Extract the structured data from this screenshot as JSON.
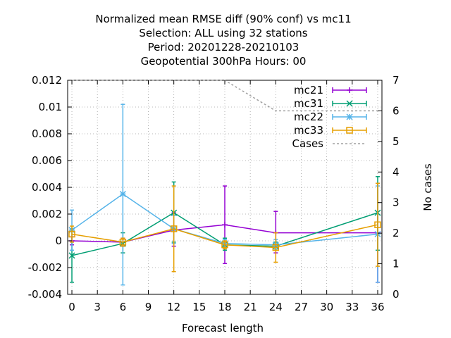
{
  "chart_data": {
    "type": "line",
    "title_lines": [
      "Normalized mean RMSE diff (90% conf) vs mc11",
      "Selection: ALL using    32 stations",
      "Period: 20201228-20210103",
      "Geopotential 300hPa  Hours:  00"
    ],
    "xlabel": "Forecast length",
    "ylabel": "",
    "y2label": "No cases",
    "xlim": [
      -0.5,
      36.5
    ],
    "ylim": [
      -0.004,
      0.012
    ],
    "y2lim": [
      0,
      7
    ],
    "x_ticks": [
      0,
      3,
      6,
      9,
      12,
      15,
      18,
      21,
      24,
      27,
      30,
      33,
      36
    ],
    "y_ticks": [
      -0.004,
      -0.002,
      0,
      0.002,
      0.004,
      0.006,
      0.008,
      0.01,
      0.012
    ],
    "y_tick_labels": [
      "-0.004",
      "-0.002",
      "0",
      "0.002",
      "0.004",
      "0.006",
      "0.008",
      "0.01",
      "0.012"
    ],
    "y2_ticks": [
      0,
      1,
      2,
      3,
      4,
      5,
      6,
      7
    ],
    "y2_tick_labels": [
      "0",
      "1",
      "2",
      "3",
      "4",
      "5",
      "6",
      "7"
    ],
    "grid": true,
    "legend_position": "top-right",
    "series": [
      {
        "name": "mc21",
        "color": "#9400d3",
        "marker": "plus",
        "x": [
          0,
          6,
          12,
          18,
          24,
          36
        ],
        "y": [
          0.0,
          -0.0001,
          0.0008,
          0.0012,
          0.0006,
          0.0006
        ],
        "err_low": [
          -0.0003,
          -0.0004,
          -0.0004,
          -0.0017,
          -0.0009,
          -0.0031
        ],
        "err_high": [
          0.0003,
          0.0002,
          0.0021,
          0.0041,
          0.0022,
          0.0043
        ]
      },
      {
        "name": "mc31",
        "color": "#009e73",
        "marker": "cross",
        "x": [
          0,
          6,
          12,
          18,
          24,
          36
        ],
        "y": [
          -0.0011,
          -0.0002,
          0.0021,
          -0.0003,
          -0.0004,
          0.0021
        ],
        "err_low": [
          -0.0031,
          -0.0009,
          -0.0001,
          -0.0007,
          -0.0007,
          -0.0007
        ],
        "err_high": [
          0.0009,
          0.0006,
          0.0044,
          0.0002,
          -0.0001,
          0.0048
        ]
      },
      {
        "name": "mc22",
        "color": "#56b4e9",
        "marker": "star",
        "x": [
          0,
          6,
          12,
          18,
          24,
          36
        ],
        "y": [
          0.0008,
          0.0035,
          0.0009,
          -0.0002,
          -0.0003,
          0.0005
        ],
        "err_low": [
          -0.0007,
          -0.0033,
          -0.0002,
          -0.0005,
          -0.0006,
          -0.0031
        ],
        "err_high": [
          0.0023,
          0.0102,
          0.0019,
          0.0001,
          0.0001,
          0.0041
        ]
      },
      {
        "name": "mc33",
        "color": "#e69f00",
        "marker": "square",
        "x": [
          0,
          6,
          12,
          18,
          24,
          36
        ],
        "y": [
          0.0005,
          -0.0001,
          0.0009,
          -0.0003,
          -0.0005,
          0.0012
        ],
        "err_low": [
          -0.0001,
          -0.0004,
          -0.0023,
          -0.0006,
          -0.0016,
          -0.0019
        ],
        "err_high": [
          0.0011,
          0.0002,
          0.0041,
          0.0,
          0.0006,
          0.0043
        ]
      }
    ],
    "cases": {
      "name": "Cases",
      "color": "#a0a0a0",
      "axis": "y2",
      "x": [
        0,
        18,
        24,
        36
      ],
      "y": [
        7,
        7,
        6,
        6
      ]
    }
  }
}
